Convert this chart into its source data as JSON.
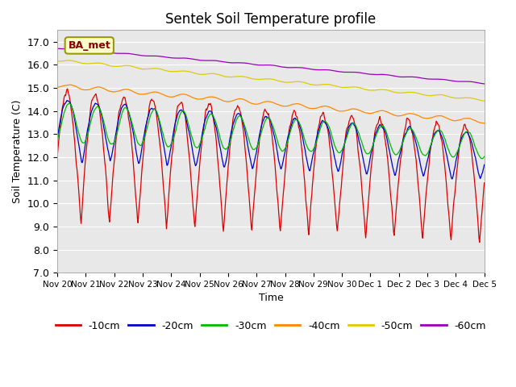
{
  "title": "Sentek Soil Temperature profile",
  "xlabel": "Time",
  "ylabel": "Soil Temperature (C)",
  "annotation": "BA_met",
  "ylim": [
    7.0,
    17.5
  ],
  "yticks": [
    7.0,
    8.0,
    9.0,
    10.0,
    11.0,
    12.0,
    13.0,
    14.0,
    15.0,
    16.0,
    17.0
  ],
  "x_labels": [
    "Nov 20",
    "Nov 21",
    "Nov 22",
    "Nov 23",
    "Nov 24",
    "Nov 25",
    "Nov 26",
    "Nov 27",
    "Nov 28",
    "Nov 29",
    "Nov 30",
    "Dec 1",
    "Dec 2",
    "Dec 3",
    "Dec 4",
    "Dec 5"
  ],
  "colors": {
    "-10cm": "#dd0000",
    "-20cm": "#0000cc",
    "-30cm": "#00bb00",
    "-40cm": "#ff8800",
    "-50cm": "#ddcc00",
    "-60cm": "#9900bb"
  },
  "background_color": "#e8e8e8",
  "plot_bg": "#dcdcdc",
  "title_fontsize": 12,
  "axis_fontsize": 9,
  "legend_fontsize": 9,
  "n_days": 15,
  "samples_per_day": 48
}
